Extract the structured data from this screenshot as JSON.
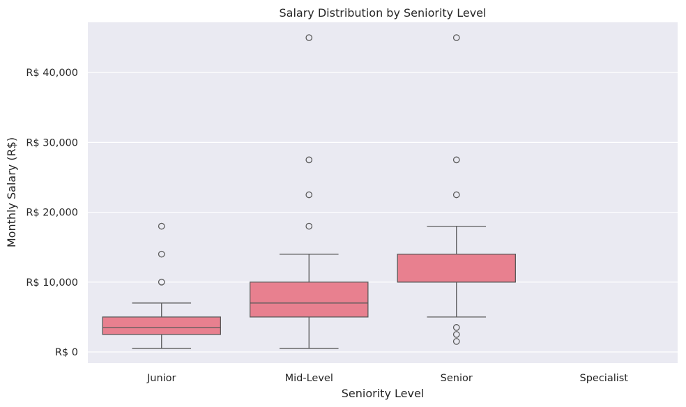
{
  "chart_data": {
    "type": "boxplot",
    "title": "Salary Distribution by Seniority Level",
    "xlabel": "Seniority Level",
    "ylabel": "Monthly Salary (R$)",
    "ylim": [
      -1600,
      47200
    ],
    "yticks": [
      0,
      10000,
      20000,
      30000,
      40000
    ],
    "ytick_labels": [
      "R$ 0",
      "R$ 10,000",
      "R$ 20,000",
      "R$ 30,000",
      "R$ 40,000"
    ],
    "categories": [
      "Junior",
      "Mid-Level",
      "Senior",
      "Specialist"
    ],
    "grid": true,
    "colors": {
      "box": "#e8808f",
      "line": "#5a5a5a",
      "background": "#eaeaf2",
      "grid": "#ffffff"
    },
    "boxes": [
      {
        "category": "Junior",
        "whisker_low": 500,
        "q1": 2500,
        "median": 3500,
        "q3": 5000,
        "whisker_high": 7000,
        "outliers": [
          10000,
          14000,
          18000
        ]
      },
      {
        "category": "Mid-Level",
        "whisker_low": 500,
        "q1": 5000,
        "median": 7000,
        "q3": 10000,
        "whisker_high": 14000,
        "outliers": [
          18000,
          22500,
          27500,
          45000
        ]
      },
      {
        "category": "Senior",
        "whisker_low": 5000,
        "q1": 10000,
        "median": 10000,
        "q3": 14000,
        "whisker_high": 18000,
        "outliers": [
          1500,
          2500,
          3500,
          22500,
          27500,
          45000
        ]
      },
      {
        "category": "Specialist",
        "empty": true
      }
    ]
  }
}
